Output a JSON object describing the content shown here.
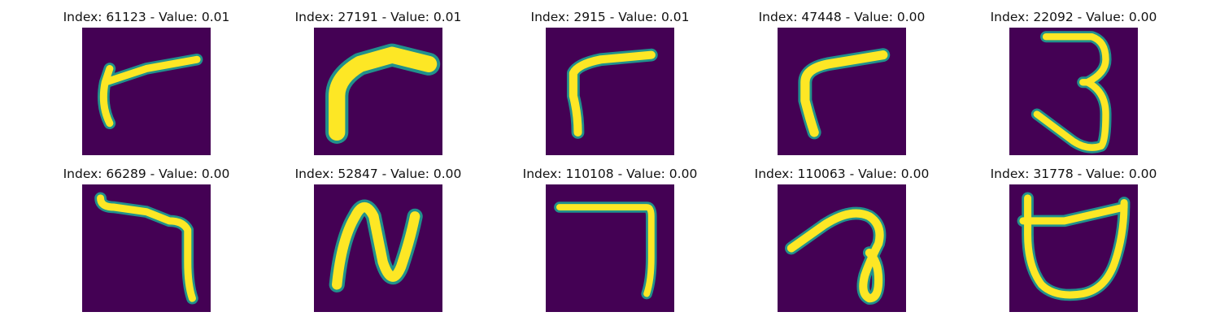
{
  "figure": {
    "panels": [
      {
        "index": "61123",
        "value": "0.01",
        "title": "Index: 61123 - Value: 0.01",
        "glyph": "gamma-short"
      },
      {
        "index": "27191",
        "value": "0.01",
        "title": "Index: 27191 - Value: 0.01",
        "glyph": "gamma-thick"
      },
      {
        "index": "2915",
        "value": "0.01",
        "title": "Index: 2915 - Value: 0.01",
        "glyph": "gamma"
      },
      {
        "index": "47448",
        "value": "0.00",
        "title": "Index: 47448 - Value: 0.00",
        "glyph": "gamma"
      },
      {
        "index": "22092",
        "value": "0.00",
        "title": "Index: 22092 - Value: 0.00",
        "glyph": "three"
      },
      {
        "index": "66289",
        "value": "0.00",
        "title": "Index: 66289 - Value: 0.00",
        "glyph": "seven-like"
      },
      {
        "index": "52847",
        "value": "0.00",
        "title": "Index: 52847 - Value: 0.00",
        "glyph": "N"
      },
      {
        "index": "110108",
        "value": "0.00",
        "title": "Index: 110108 - Value: 0.00",
        "glyph": "seven"
      },
      {
        "index": "110063",
        "value": "0.00",
        "title": "Index: 110063 - Value: 0.00",
        "glyph": "a-loop"
      },
      {
        "index": "31778",
        "value": "0.00",
        "title": "Index: 31778 - Value: 0.00",
        "glyph": "D-cup"
      }
    ],
    "colors": {
      "background": "#440154",
      "stroke": "#fde725",
      "edge": "#21918c"
    }
  }
}
